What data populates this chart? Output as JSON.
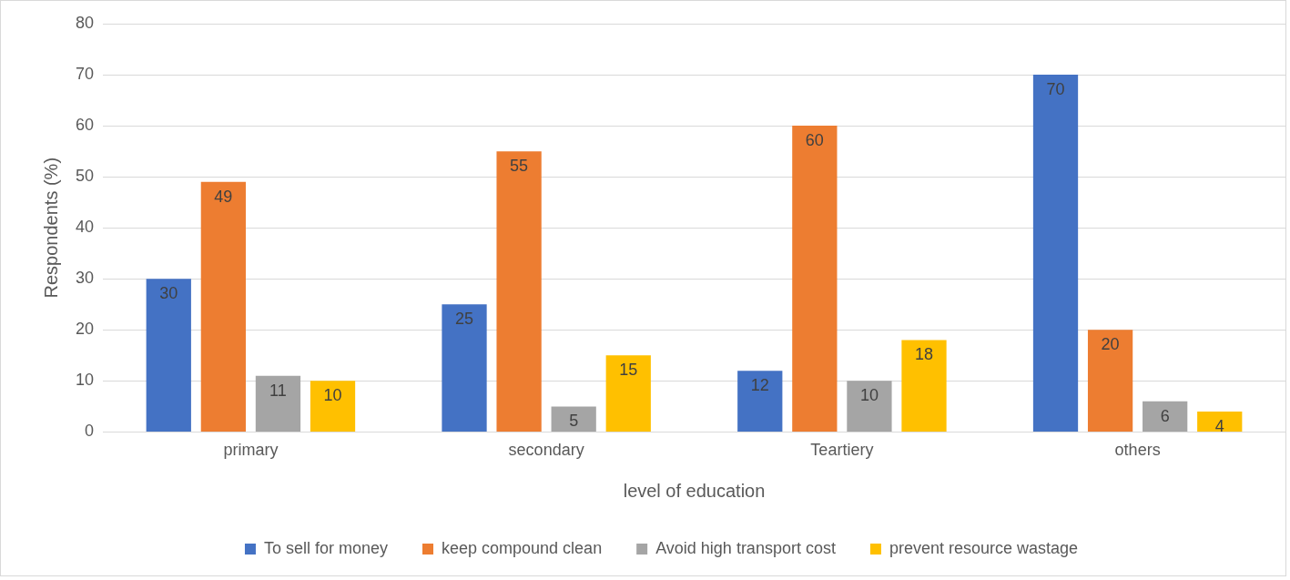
{
  "chart_data": {
    "type": "bar",
    "xlabel": "level of education",
    "ylabel": "Respondents (%)",
    "categories": [
      "primary",
      "secondary",
      "Teartiery",
      "others"
    ],
    "series": [
      {
        "name": "To sell for money",
        "color": "#4472c4",
        "values": [
          30,
          25,
          12,
          70
        ]
      },
      {
        "name": "keep compound clean",
        "color": "#ed7d31",
        "values": [
          49,
          55,
          60,
          20
        ]
      },
      {
        "name": "Avoid high transport cost",
        "color": "#a5a5a5",
        "values": [
          11,
          5,
          10,
          6
        ]
      },
      {
        "name": "prevent resource wastage",
        "color": "#ffc000",
        "values": [
          10,
          15,
          18,
          4
        ]
      }
    ],
    "ylim": [
      0,
      80
    ],
    "yticks": [
      0,
      10,
      20,
      30,
      40,
      50,
      60,
      70,
      80
    ],
    "grid": "y",
    "legend": "bottom",
    "data_labels": true
  }
}
